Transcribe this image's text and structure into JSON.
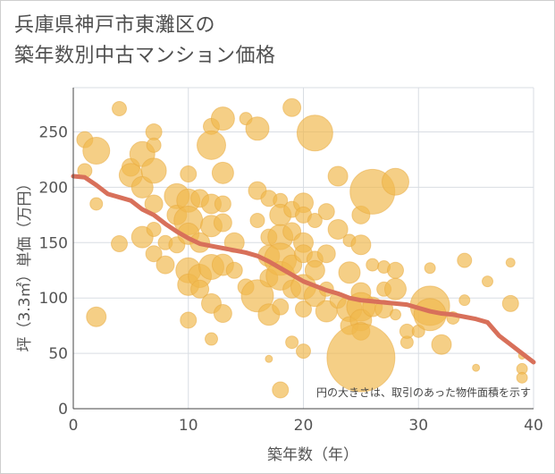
{
  "title_line1": "兵庫県神戸市東灘区の",
  "title_line2": "築年数別中古マンション価格",
  "note": "円の大きさは、取引のあった物件面積を示す",
  "colors": {
    "bubble": "#f0b84c",
    "bubble_stroke": "#e8a83a",
    "trend": "#d8705a",
    "grid": "#d9dde3",
    "axis": "#444444"
  },
  "chart_data": {
    "type": "scatter",
    "title": "兵庫県神戸市東灘区の築年数別中古マンション価格",
    "xlabel": "築年数（年）",
    "ylabel": "坪（3.3㎡）単価（万円）",
    "xlim": [
      0,
      40
    ],
    "ylim": [
      0,
      290
    ],
    "xticks": [
      0,
      10,
      20,
      30,
      40
    ],
    "yticks": [
      0,
      50,
      100,
      150,
      200,
      250
    ],
    "grid": true,
    "size_meaning": "円の大きさは、取引のあった物件面積を示す",
    "trend": {
      "x": [
        0,
        1,
        2,
        3,
        4,
        5,
        6,
        7,
        8,
        9,
        10,
        11,
        12,
        13,
        14,
        15,
        16,
        17,
        18,
        19,
        20,
        21,
        22,
        23,
        24,
        25,
        26,
        27,
        28,
        29,
        30,
        31,
        32,
        33,
        34,
        35,
        36,
        37,
        38,
        39,
        40
      ],
      "y": [
        210,
        209,
        202,
        194,
        191,
        188,
        180,
        175,
        167,
        160,
        154,
        149,
        147,
        145,
        143,
        141,
        138,
        133,
        127,
        121,
        115,
        111,
        107,
        104,
        100,
        98,
        97,
        96,
        95,
        94,
        91,
        88,
        86,
        85,
        83,
        81,
        78,
        66,
        58,
        50,
        42
      ]
    },
    "points": [
      {
        "x": 1,
        "y": 243,
        "s": 9
      },
      {
        "x": 2,
        "y": 233,
        "s": 15
      },
      {
        "x": 1,
        "y": 215,
        "s": 8
      },
      {
        "x": 2,
        "y": 185,
        "s": 7
      },
      {
        "x": 2,
        "y": 83,
        "s": 11
      },
      {
        "x": 4,
        "y": 271,
        "s": 8
      },
      {
        "x": 4,
        "y": 149,
        "s": 9
      },
      {
        "x": 5,
        "y": 218,
        "s": 10
      },
      {
        "x": 5,
        "y": 211,
        "s": 13
      },
      {
        "x": 6,
        "y": 230,
        "s": 14
      },
      {
        "x": 6,
        "y": 200,
        "s": 12
      },
      {
        "x": 6,
        "y": 155,
        "s": 12
      },
      {
        "x": 7,
        "y": 250,
        "s": 9
      },
      {
        "x": 7,
        "y": 238,
        "s": 8
      },
      {
        "x": 7,
        "y": 215,
        "s": 14
      },
      {
        "x": 7,
        "y": 185,
        "s": 10
      },
      {
        "x": 7,
        "y": 162,
        "s": 8
      },
      {
        "x": 7,
        "y": 140,
        "s": 9
      },
      {
        "x": 8,
        "y": 150,
        "s": 8
      },
      {
        "x": 8,
        "y": 130,
        "s": 10
      },
      {
        "x": 9,
        "y": 192,
        "s": 14
      },
      {
        "x": 9,
        "y": 175,
        "s": 11
      },
      {
        "x": 9,
        "y": 148,
        "s": 9
      },
      {
        "x": 10,
        "y": 212,
        "s": 9
      },
      {
        "x": 10,
        "y": 188,
        "s": 13
      },
      {
        "x": 10,
        "y": 170,
        "s": 16
      },
      {
        "x": 10,
        "y": 158,
        "s": 12
      },
      {
        "x": 10,
        "y": 125,
        "s": 14
      },
      {
        "x": 10,
        "y": 112,
        "s": 12
      },
      {
        "x": 10,
        "y": 80,
        "s": 9
      },
      {
        "x": 11,
        "y": 190,
        "s": 10
      },
      {
        "x": 11,
        "y": 150,
        "s": 11
      },
      {
        "x": 11,
        "y": 120,
        "s": 13
      },
      {
        "x": 11,
        "y": 108,
        "s": 10
      },
      {
        "x": 12,
        "y": 255,
        "s": 9
      },
      {
        "x": 12,
        "y": 238,
        "s": 16
      },
      {
        "x": 12,
        "y": 185,
        "s": 11
      },
      {
        "x": 12,
        "y": 165,
        "s": 12
      },
      {
        "x": 12,
        "y": 128,
        "s": 14
      },
      {
        "x": 12,
        "y": 95,
        "s": 11
      },
      {
        "x": 12,
        "y": 63,
        "s": 7
      },
      {
        "x": 13,
        "y": 262,
        "s": 13
      },
      {
        "x": 13,
        "y": 213,
        "s": 12
      },
      {
        "x": 13,
        "y": 185,
        "s": 9
      },
      {
        "x": 13,
        "y": 168,
        "s": 10
      },
      {
        "x": 13,
        "y": 130,
        "s": 12
      },
      {
        "x": 13,
        "y": 86,
        "s": 10
      },
      {
        "x": 14,
        "y": 150,
        "s": 11
      },
      {
        "x": 14,
        "y": 125,
        "s": 9
      },
      {
        "x": 15,
        "y": 262,
        "s": 7
      },
      {
        "x": 15,
        "y": 110,
        "s": 9
      },
      {
        "x": 16,
        "y": 253,
        "s": 13
      },
      {
        "x": 16,
        "y": 197,
        "s": 10
      },
      {
        "x": 16,
        "y": 170,
        "s": 8
      },
      {
        "x": 16,
        "y": 102,
        "s": 18
      },
      {
        "x": 17,
        "y": 190,
        "s": 9
      },
      {
        "x": 17,
        "y": 155,
        "s": 9
      },
      {
        "x": 17,
        "y": 138,
        "s": 12
      },
      {
        "x": 17,
        "y": 118,
        "s": 10
      },
      {
        "x": 17,
        "y": 85,
        "s": 12
      },
      {
        "x": 17,
        "y": 45,
        "s": 4
      },
      {
        "x": 18,
        "y": 188,
        "s": 8
      },
      {
        "x": 18,
        "y": 175,
        "s": 12
      },
      {
        "x": 18,
        "y": 155,
        "s": 14
      },
      {
        "x": 18,
        "y": 135,
        "s": 18
      },
      {
        "x": 18,
        "y": 120,
        "s": 16
      },
      {
        "x": 18,
        "y": 92,
        "s": 9
      },
      {
        "x": 18,
        "y": 17,
        "s": 9
      },
      {
        "x": 19,
        "y": 272,
        "s": 10
      },
      {
        "x": 19,
        "y": 180,
        "s": 9
      },
      {
        "x": 19,
        "y": 160,
        "s": 10
      },
      {
        "x": 19,
        "y": 130,
        "s": 11
      },
      {
        "x": 19,
        "y": 108,
        "s": 10
      },
      {
        "x": 19,
        "y": 60,
        "s": 7
      },
      {
        "x": 20,
        "y": 186,
        "s": 11
      },
      {
        "x": 20,
        "y": 175,
        "s": 9
      },
      {
        "x": 20,
        "y": 150,
        "s": 11
      },
      {
        "x": 20,
        "y": 140,
        "s": 10
      },
      {
        "x": 20,
        "y": 110,
        "s": 14
      },
      {
        "x": 20,
        "y": 90,
        "s": 9
      },
      {
        "x": 20,
        "y": 52,
        "s": 8
      },
      {
        "x": 21,
        "y": 249,
        "s": 20
      },
      {
        "x": 21,
        "y": 170,
        "s": 8
      },
      {
        "x": 21,
        "y": 135,
        "s": 9
      },
      {
        "x": 21,
        "y": 125,
        "s": 11
      },
      {
        "x": 21,
        "y": 102,
        "s": 12
      },
      {
        "x": 22,
        "y": 178,
        "s": 9
      },
      {
        "x": 22,
        "y": 140,
        "s": 10
      },
      {
        "x": 22,
        "y": 108,
        "s": 8
      },
      {
        "x": 22,
        "y": 88,
        "s": 12
      },
      {
        "x": 23,
        "y": 210,
        "s": 11
      },
      {
        "x": 23,
        "y": 162,
        "s": 11
      },
      {
        "x": 23,
        "y": 98,
        "s": 9
      },
      {
        "x": 24,
        "y": 152,
        "s": 7
      },
      {
        "x": 24,
        "y": 123,
        "s": 12
      },
      {
        "x": 24,
        "y": 90,
        "s": 14
      },
      {
        "x": 24,
        "y": 75,
        "s": 10
      },
      {
        "x": 25,
        "y": 175,
        "s": 10
      },
      {
        "x": 25,
        "y": 148,
        "s": 11
      },
      {
        "x": 25,
        "y": 105,
        "s": 11
      },
      {
        "x": 25,
        "y": 92,
        "s": 16
      },
      {
        "x": 25,
        "y": 80,
        "s": 12
      },
      {
        "x": 25,
        "y": 70,
        "s": 10
      },
      {
        "x": 25,
        "y": 46,
        "s": 38
      },
      {
        "x": 26,
        "y": 196,
        "s": 25
      },
      {
        "x": 26,
        "y": 130,
        "s": 7
      },
      {
        "x": 26,
        "y": 92,
        "s": 11
      },
      {
        "x": 27,
        "y": 128,
        "s": 7
      },
      {
        "x": 27,
        "y": 108,
        "s": 8
      },
      {
        "x": 27,
        "y": 90,
        "s": 10
      },
      {
        "x": 28,
        "y": 205,
        "s": 15
      },
      {
        "x": 28,
        "y": 125,
        "s": 9
      },
      {
        "x": 28,
        "y": 108,
        "s": 12
      },
      {
        "x": 28,
        "y": 85,
        "s": 6
      },
      {
        "x": 29,
        "y": 60,
        "s": 7
      },
      {
        "x": 29,
        "y": 70,
        "s": 8
      },
      {
        "x": 30,
        "y": 70,
        "s": 7
      },
      {
        "x": 31,
        "y": 127,
        "s": 6
      },
      {
        "x": 31,
        "y": 93,
        "s": 22
      },
      {
        "x": 31,
        "y": 85,
        "s": 18
      },
      {
        "x": 32,
        "y": 58,
        "s": 11
      },
      {
        "x": 33,
        "y": 82,
        "s": 7
      },
      {
        "x": 34,
        "y": 134,
        "s": 8
      },
      {
        "x": 34,
        "y": 98,
        "s": 6
      },
      {
        "x": 35,
        "y": 37,
        "s": 4
      },
      {
        "x": 36,
        "y": 115,
        "s": 6
      },
      {
        "x": 38,
        "y": 132,
        "s": 5
      },
      {
        "x": 38,
        "y": 95,
        "s": 9
      },
      {
        "x": 39,
        "y": 48,
        "s": 4
      },
      {
        "x": 39,
        "y": 36,
        "s": 6
      },
      {
        "x": 39,
        "y": 28,
        "s": 6
      }
    ]
  }
}
